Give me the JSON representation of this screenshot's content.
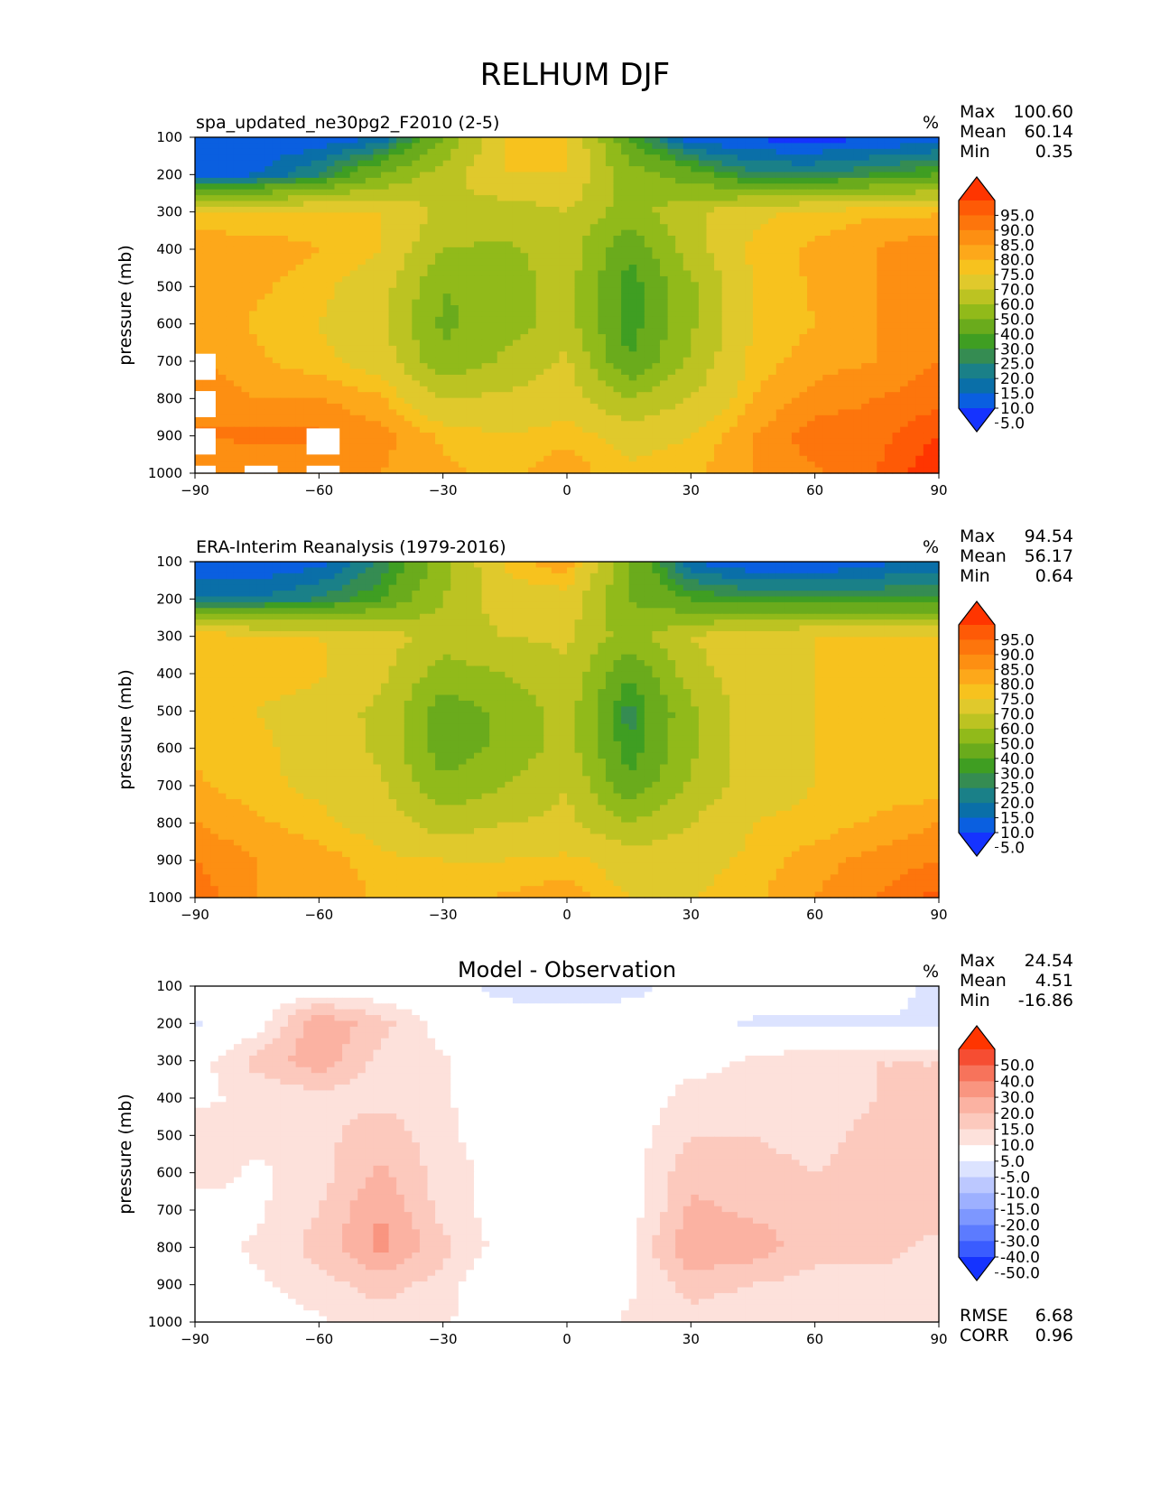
{
  "figure": {
    "title": "RELHUM DJF"
  },
  "chart_data": [
    {
      "id": "model",
      "type": "heatmap",
      "title": "spa_updated_ne30pg2_F2010 (2-5)",
      "title_align": "left",
      "units": "%",
      "xlabel": "",
      "ylabel": "pressure (mb)",
      "xlim": [
        -90,
        90
      ],
      "ylim": [
        1000,
        100
      ],
      "xticks": [
        -90,
        -60,
        -30,
        0,
        30,
        60,
        90
      ],
      "xtick_labels": [
        "−90",
        "−60",
        "−30",
        "0",
        "30",
        "60",
        "90"
      ],
      "yticks": [
        100,
        200,
        300,
        400,
        500,
        600,
        700,
        800,
        900,
        1000
      ],
      "ytick_labels": [
        "100",
        "200",
        "300",
        "400",
        "500",
        "600",
        "700",
        "800",
        "900",
        "1000"
      ],
      "stats": [
        {
          "label": "Max",
          "value": "100.60"
        },
        {
          "label": "Mean",
          "value": "60.14"
        },
        {
          "label": "Min",
          "value": "0.35"
        }
      ],
      "colorbar": {
        "levels": [
          5,
          10,
          15,
          20,
          25,
          30,
          40,
          50,
          60,
          70,
          75,
          80,
          85,
          90,
          95
        ],
        "labels": [
          "95.0",
          "90.0",
          "85.0",
          "80.0",
          "75.0",
          "70.0",
          "60.0",
          "50.0",
          "40.0",
          "30.0",
          "25.0",
          "20.0",
          "15.0",
          "10.0",
          "5.0"
        ],
        "colors": [
          "#1533ff",
          "#0a5fe0",
          "#0a6fa8",
          "#1a8088",
          "#358c52",
          "#3f9e22",
          "#6aab1c",
          "#91ba1a",
          "#bcc322",
          "#e0c92c",
          "#f7c21e",
          "#fda81a",
          "#fd8f12",
          "#fd750c",
          "#fe5a06",
          "#ff3500"
        ]
      },
      "lat": [
        -90,
        -75,
        -60,
        -45,
        -30,
        -15,
        0,
        15,
        30,
        45,
        60,
        75,
        90
      ],
      "lev": [
        100,
        200,
        300,
        400,
        500,
        600,
        700,
        800,
        900,
        1000
      ],
      "values": [
        [
          5,
          5,
          5,
          10,
          40,
          70,
          72,
          30,
          5,
          4,
          3,
          4,
          6
        ],
        [
          7,
          10,
          20,
          40,
          55,
          70,
          70,
          45,
          35,
          20,
          20,
          25,
          30
        ],
        [
          70,
          70,
          72,
          70,
          58,
          55,
          60,
          45,
          58,
          68,
          72,
          74,
          74
        ],
        [
          80,
          78,
          75,
          70,
          50,
          48,
          55,
          32,
          55,
          72,
          76,
          80,
          85
        ],
        [
          78,
          76,
          72,
          65,
          40,
          45,
          55,
          25,
          48,
          70,
          76,
          80,
          85
        ],
        [
          80,
          74,
          70,
          62,
          38,
          45,
          55,
          25,
          48,
          70,
          75,
          80,
          85
        ],
        [
          80,
          76,
          72,
          66,
          42,
          52,
          62,
          30,
          52,
          72,
          78,
          80,
          85
        ],
        [
          85,
          80,
          80,
          76,
          60,
          62,
          65,
          50,
          60,
          75,
          82,
          85,
          88
        ],
        [
          85,
          86,
          86,
          82,
          74,
          70,
          74,
          66,
          70,
          80,
          88,
          88,
          95
        ],
        [
          80,
          82,
          82,
          80,
          76,
          74,
          78,
          72,
          74,
          80,
          84,
          90,
          100
        ]
      ],
      "masked_points": [
        [
          -90,
          700
        ],
        [
          -90,
          800
        ],
        [
          -90,
          900
        ],
        [
          -90,
          1000
        ],
        [
          -75,
          1000
        ],
        [
          -60,
          900
        ],
        [
          -60,
          1000
        ]
      ]
    },
    {
      "id": "obs",
      "type": "heatmap",
      "title": "ERA-Interim Reanalysis (1979-2016)",
      "title_align": "left",
      "units": "%",
      "xlabel": "",
      "ylabel": "pressure (mb)",
      "xlim": [
        -90,
        90
      ],
      "ylim": [
        1000,
        100
      ],
      "xticks": [
        -90,
        -60,
        -30,
        0,
        30,
        60,
        90
      ],
      "xtick_labels": [
        "−90",
        "−60",
        "−30",
        "0",
        "30",
        "60",
        "90"
      ],
      "yticks": [
        100,
        200,
        300,
        400,
        500,
        600,
        700,
        800,
        900,
        1000
      ],
      "ytick_labels": [
        "100",
        "200",
        "300",
        "400",
        "500",
        "600",
        "700",
        "800",
        "900",
        "1000"
      ],
      "stats": [
        {
          "label": "Max",
          "value": "94.54"
        },
        {
          "label": "Mean",
          "value": "56.17"
        },
        {
          "label": "Min",
          "value": "0.64"
        }
      ],
      "colorbar": {
        "levels": [
          5,
          10,
          15,
          20,
          25,
          30,
          40,
          50,
          60,
          70,
          75,
          80,
          85,
          90,
          95
        ],
        "labels": [
          "95.0",
          "90.0",
          "85.0",
          "80.0",
          "75.0",
          "70.0",
          "60.0",
          "50.0",
          "40.0",
          "30.0",
          "25.0",
          "20.0",
          "15.0",
          "10.0",
          "5.0"
        ],
        "colors": [
          "#1533ff",
          "#0a5fe0",
          "#0a6fa8",
          "#1a8088",
          "#358c52",
          "#3f9e22",
          "#6aab1c",
          "#91ba1a",
          "#bcc322",
          "#e0c92c",
          "#f7c21e",
          "#fda81a",
          "#fd8f12",
          "#fd750c",
          "#fe5a06",
          "#ff3500"
        ]
      },
      "lat": [
        -90,
        -75,
        -60,
        -45,
        -30,
        -15,
        0,
        15,
        30,
        45,
        60,
        75,
        90
      ],
      "lev": [
        100,
        200,
        300,
        400,
        500,
        600,
        700,
        800,
        900,
        1000
      ],
      "values": [
        [
          5,
          5,
          8,
          20,
          45,
          72,
          80,
          40,
          10,
          5,
          4,
          8,
          12
        ],
        [
          15,
          15,
          20,
          30,
          50,
          66,
          66,
          40,
          30,
          25,
          25,
          25,
          25
        ],
        [
          75,
          72,
          70,
          65,
          55,
          60,
          62,
          45,
          60,
          68,
          70,
          72,
          72
        ],
        [
          75,
          75,
          72,
          62,
          45,
          50,
          58,
          30,
          55,
          68,
          70,
          72,
          75
        ],
        [
          72,
          70,
          64,
          58,
          35,
          42,
          55,
          22,
          48,
          66,
          70,
          72,
          72
        ],
        [
          74,
          72,
          66,
          58,
          35,
          42,
          55,
          25,
          48,
          66,
          70,
          70,
          72
        ],
        [
          76,
          72,
          68,
          62,
          42,
          50,
          60,
          32,
          52,
          66,
          70,
          72,
          72
        ],
        [
          80,
          76,
          72,
          66,
          55,
          60,
          62,
          50,
          60,
          70,
          72,
          76,
          80
        ],
        [
          85,
          80,
          78,
          72,
          70,
          70,
          72,
          66,
          66,
          72,
          78,
          82,
          85
        ],
        [
          88,
          80,
          80,
          74,
          72,
          76,
          78,
          70,
          70,
          74,
          80,
          85,
          92
        ]
      ]
    },
    {
      "id": "diff",
      "type": "heatmap",
      "title": "Model - Observation",
      "title_align": "center",
      "units": "%",
      "xlabel": "",
      "ylabel": "pressure (mb)",
      "xlim": [
        -90,
        90
      ],
      "ylim": [
        1000,
        100
      ],
      "xticks": [
        -90,
        -60,
        -30,
        0,
        30,
        60,
        90
      ],
      "xtick_labels": [
        "−90",
        "−60",
        "−30",
        "0",
        "30",
        "60",
        "90"
      ],
      "yticks": [
        100,
        200,
        300,
        400,
        500,
        600,
        700,
        800,
        900,
        1000
      ],
      "ytick_labels": [
        "100",
        "200",
        "300",
        "400",
        "500",
        "600",
        "700",
        "800",
        "900",
        "1000"
      ],
      "stats": [
        {
          "label": "Max",
          "value": "24.54"
        },
        {
          "label": "Mean",
          "value": "4.51"
        },
        {
          "label": "Min",
          "value": "-16.86"
        }
      ],
      "bottom_stats": [
        {
          "label": "RMSE",
          "value": "6.68"
        },
        {
          "label": "CORR",
          "value": "0.96"
        }
      ],
      "colorbar": {
        "levels": [
          -50,
          -40,
          -30,
          -20,
          -15,
          -10,
          -5,
          5,
          10,
          15,
          20,
          30,
          40,
          50
        ],
        "labels": [
          "50.0",
          "40.0",
          "30.0",
          "20.0",
          "15.0",
          "10.0",
          "5.0",
          "-5.0",
          "-10.0",
          "-15.0",
          "-20.0",
          "-30.0",
          "-40.0",
          "-50.0"
        ],
        "colors": [
          "#1533ff",
          "#3a5cff",
          "#5c7bff",
          "#7d97ff",
          "#9db0ff",
          "#bcc8ff",
          "#dce3ff",
          "#ffffff",
          "#fde1db",
          "#fcc9bd",
          "#fbb2a2",
          "#f99580",
          "#f7735b",
          "#f64d32",
          "#ff3500"
        ]
      },
      "lat": [
        -90,
        -75,
        -60,
        -45,
        -30,
        -15,
        0,
        15,
        30,
        45,
        60,
        75,
        90
      ],
      "lev": [
        100,
        200,
        300,
        400,
        500,
        600,
        700,
        800,
        900,
        1000
      ],
      "values": [
        [
          0,
          0,
          0,
          0,
          -2,
          -8,
          -10,
          -8,
          0,
          0,
          0,
          0,
          -8
        ],
        [
          -6,
          2,
          20,
          12,
          2,
          0,
          0,
          0,
          -2,
          -6,
          -6,
          -6,
          -6
        ],
        [
          2,
          12,
          18,
          8,
          6,
          0,
          0,
          0,
          2,
          6,
          10,
          10,
          10
        ],
        [
          4,
          6,
          8,
          8,
          6,
          0,
          0,
          0,
          8,
          8,
          6,
          10,
          10
        ],
        [
          8,
          6,
          8,
          14,
          6,
          2,
          0,
          2,
          10,
          10,
          8,
          12,
          14
        ],
        [
          8,
          4,
          8,
          16,
          8,
          2,
          0,
          2,
          14,
          12,
          10,
          12,
          14
        ],
        [
          2,
          4,
          10,
          20,
          8,
          2,
          0,
          2,
          16,
          14,
          12,
          12,
          14
        ],
        [
          2,
          6,
          12,
          22,
          12,
          2,
          0,
          4,
          20,
          18,
          12,
          12,
          8
        ],
        [
          0,
          4,
          8,
          12,
          8,
          -4,
          0,
          4,
          12,
          10,
          8,
          8,
          8
        ],
        [
          0,
          2,
          4,
          8,
          6,
          0,
          0,
          6,
          8,
          6,
          6,
          6,
          6
        ]
      ]
    }
  ]
}
